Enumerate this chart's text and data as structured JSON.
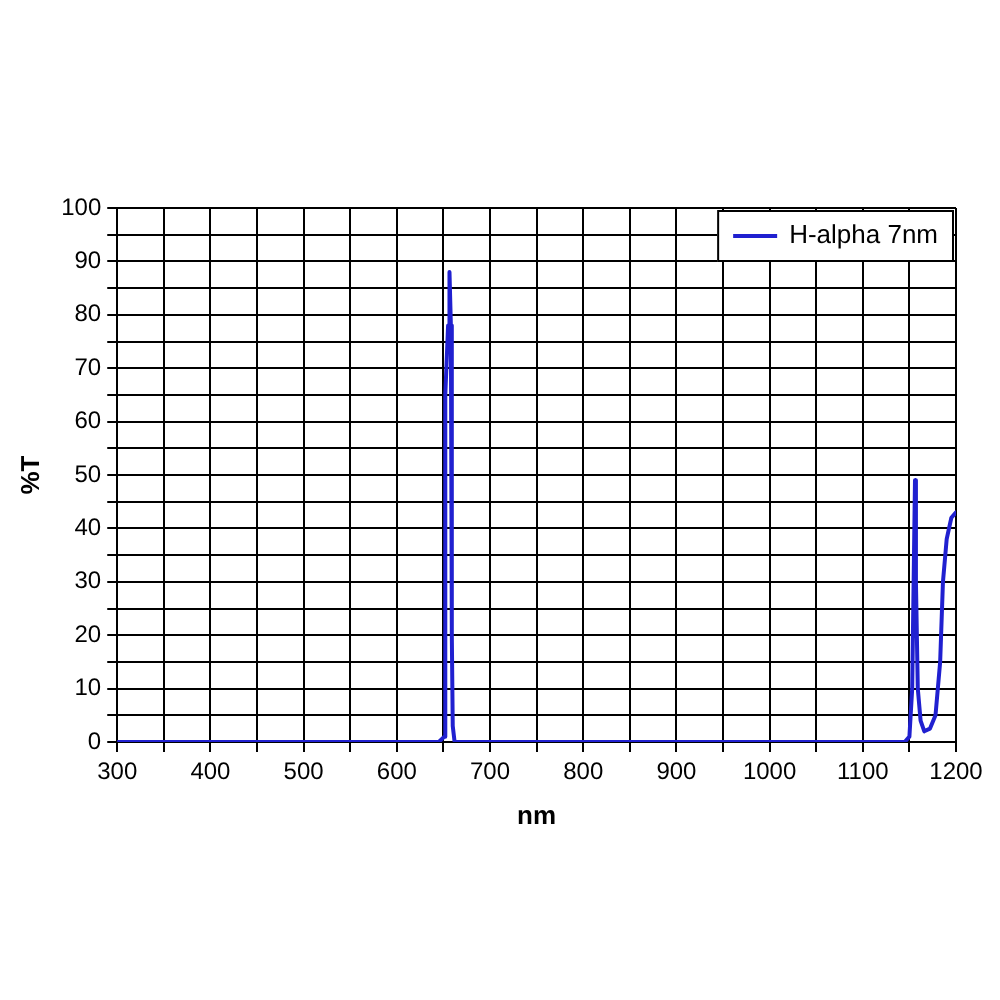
{
  "chart_data": {
    "type": "line",
    "xlabel": "nm",
    "ylabel": "%T",
    "xlim": [
      300,
      1200
    ],
    "xticks": [
      300,
      {
        "value": 350,
        "label": null
      },
      400,
      {
        "value": 450,
        "label": null
      },
      500,
      {
        "value": 550,
        "label": null
      },
      600,
      {
        "value": 650,
        "label": null
      },
      700,
      {
        "value": 750,
        "label": null
      },
      800,
      {
        "value": 850,
        "label": null
      },
      900,
      {
        "value": 950,
        "label": null
      },
      1000,
      {
        "value": 1050,
        "label": null
      },
      1100,
      {
        "value": 1150,
        "label": null
      },
      1200
    ],
    "ylim": [
      0,
      100
    ],
    "yticks": [
      0,
      {
        "value": 5,
        "label": null
      },
      10,
      {
        "value": 15,
        "label": null
      },
      20,
      {
        "value": 25,
        "label": null
      },
      30,
      {
        "value": 35,
        "label": null
      },
      40,
      {
        "value": 45,
        "label": null
      },
      50,
      {
        "value": 55,
        "label": null
      },
      60,
      {
        "value": 65,
        "label": null
      },
      70,
      {
        "value": 75,
        "label": null
      },
      80,
      {
        "value": 85,
        "label": null
      },
      90,
      {
        "value": 95,
        "label": null
      },
      100
    ],
    "grid": true,
    "legend": "top right",
    "marker": "none",
    "line_style": "solid",
    "series": [
      {
        "name": "H-alpha 7nm",
        "color": "#2020d0",
        "x": [
          300,
          645,
          651,
          652,
          655,
          656,
          657,
          658,
          659,
          660,
          662,
          1145,
          1150,
          1153,
          1156,
          1157,
          1159,
          1162,
          1166,
          1172,
          1178,
          1183,
          1186,
          1190,
          1195,
          1200
        ],
        "values": [
          0,
          0,
          1,
          65,
          78,
          88,
          88,
          78,
          20,
          3,
          0,
          0,
          1,
          10,
          49,
          30,
          10,
          4,
          2,
          2.5,
          5,
          15,
          30,
          38,
          42,
          43
        ]
      }
    ]
  }
}
